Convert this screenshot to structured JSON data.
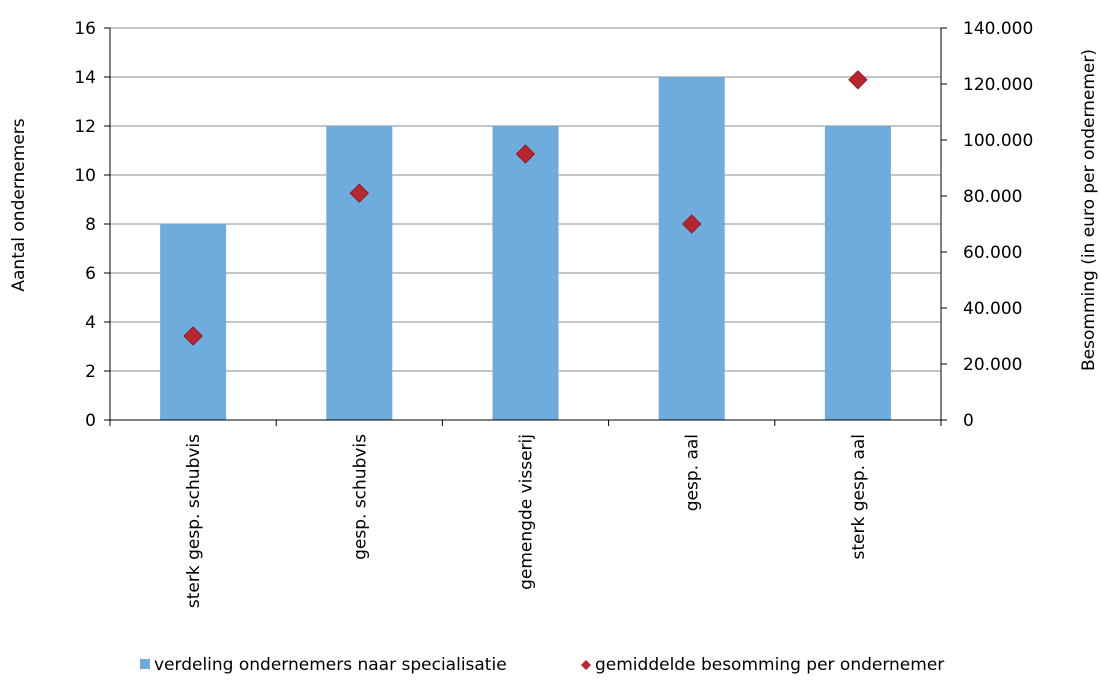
{
  "chart_data": {
    "type": "bar",
    "categories": [
      "sterk gesp. schubvis",
      "gesp. schubvis",
      "gemengde visserij",
      "gesp. aal",
      "sterk gesp. aal"
    ],
    "series": [
      {
        "name": "verdeling ondernemers naar specialisatie",
        "type": "bar",
        "axis": "left",
        "color": "#6FACDE",
        "values": [
          8,
          12,
          12,
          14,
          12
        ]
      },
      {
        "name": "gemiddelde besomming per ondernemer",
        "type": "scatter",
        "marker": "diamond",
        "axis": "right",
        "color": "#B8262E",
        "values": [
          30000,
          81000,
          95000,
          70000,
          121500
        ]
      }
    ],
    "ylabel": "Aantal ondernemers",
    "ylim": [
      0,
      16
    ],
    "yticks": [
      "0",
      "2",
      "4",
      "6",
      "8",
      "10",
      "12",
      "14",
      "16"
    ],
    "y2label": "Besomming (in euro per ondernemer)",
    "y2lim": [
      0,
      140000
    ],
    "y2ticks": [
      "0",
      "20.000",
      "40.000",
      "60.000",
      "80.000",
      "100.000",
      "120.000",
      "140.000"
    ],
    "grid": true,
    "legend_position": "bottom"
  }
}
